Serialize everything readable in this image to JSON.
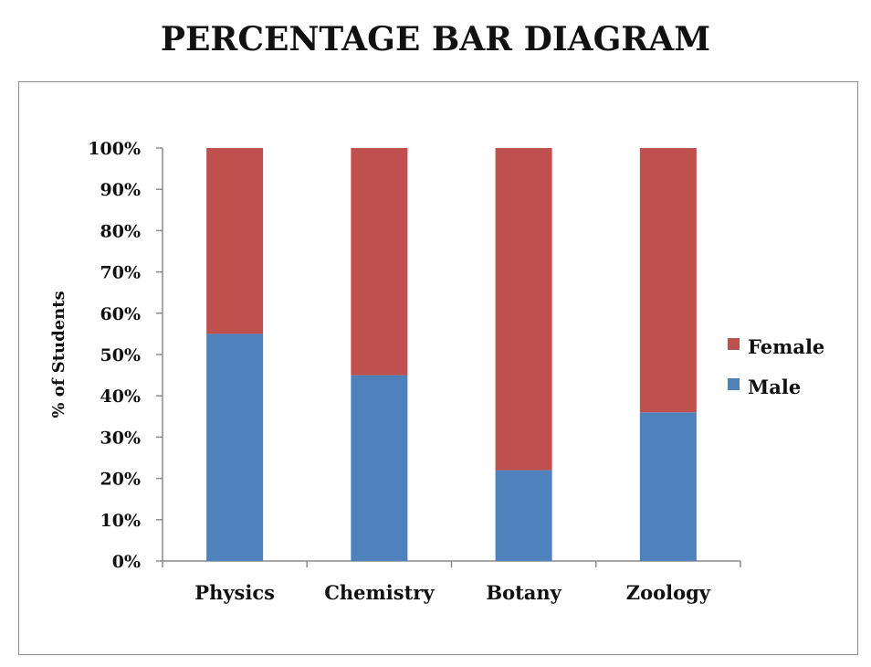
{
  "chart_data": {
    "type": "bar",
    "stacked": true,
    "title": "PERCENTAGE BAR DIAGRAM",
    "xlabel": "",
    "ylabel": "% of Students",
    "ylim": [
      0,
      100
    ],
    "yticks": [
      "0%",
      "10%",
      "20%",
      "30%",
      "40%",
      "50%",
      "60%",
      "70%",
      "80%",
      "90%",
      "100%"
    ],
    "categories": [
      "Physics",
      "Chemistry",
      "Botany",
      "Zoology"
    ],
    "series": [
      {
        "name": "Male",
        "color": "#4f81bd",
        "values": [
          55,
          45,
          22,
          36
        ]
      },
      {
        "name": "Female",
        "color": "#c0504d",
        "values": [
          45,
          55,
          78,
          64
        ]
      }
    ],
    "legend_position": "right",
    "legend_order": [
      "Female",
      "Male"
    ],
    "grid": false
  }
}
